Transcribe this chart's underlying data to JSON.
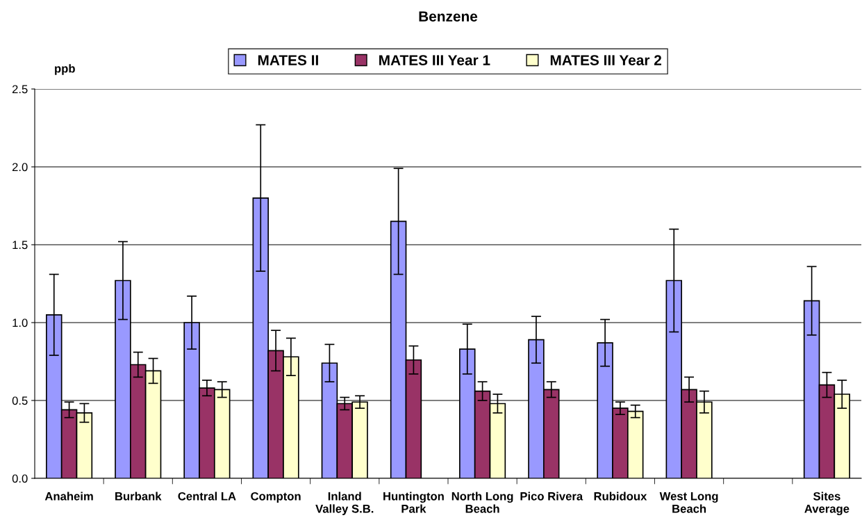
{
  "chart_data": {
    "type": "bar",
    "title": "Benzene",
    "ylabel": "ppb",
    "categories": [
      "Anaheim",
      "Burbank",
      "Central LA",
      "Compton",
      "Inland\nValley S.B.",
      "Huntington\nPark",
      "North Long\nBeach",
      "Pico Rivera",
      "Rubidoux",
      "West Long\nBeach",
      null,
      "Sites\nAverage"
    ],
    "series": [
      {
        "name": "MATES II",
        "color": "#9999ff",
        "values": [
          1.05,
          1.27,
          1.0,
          1.8,
          0.74,
          1.65,
          0.83,
          0.89,
          0.87,
          1.27,
          null,
          1.14
        ],
        "errors": [
          0.26,
          0.25,
          0.17,
          0.47,
          0.12,
          0.34,
          0.16,
          0.15,
          0.15,
          0.33,
          null,
          0.22
        ]
      },
      {
        "name": "MATES III Year 1",
        "color": "#993366",
        "values": [
          0.44,
          0.73,
          0.58,
          0.82,
          0.48,
          0.76,
          0.56,
          0.57,
          0.45,
          0.57,
          null,
          0.6
        ],
        "errors": [
          0.05,
          0.08,
          0.05,
          0.13,
          0.04,
          0.09,
          0.06,
          0.05,
          0.04,
          0.08,
          null,
          0.08
        ]
      },
      {
        "name": "MATES III Year 2",
        "color": "#ffffcc",
        "values": [
          0.42,
          0.69,
          0.57,
          0.78,
          0.49,
          null,
          0.48,
          null,
          0.43,
          0.49,
          null,
          0.54
        ],
        "errors": [
          0.06,
          0.08,
          0.05,
          0.12,
          0.04,
          null,
          0.06,
          null,
          0.04,
          0.07,
          null,
          0.09
        ]
      }
    ],
    "ylim": [
      0,
      2.5
    ],
    "yticks": [
      {
        "value": 0,
        "label": "0.0"
      },
      {
        "value": 0.5,
        "label": "0.5"
      },
      {
        "value": 1,
        "label": "1.0"
      },
      {
        "value": 1.5,
        "label": "1.5"
      },
      {
        "value": 2,
        "label": "2.0"
      },
      {
        "value": 2.5,
        "label": "2.5"
      }
    ],
    "grid": "y",
    "legend": "top"
  }
}
